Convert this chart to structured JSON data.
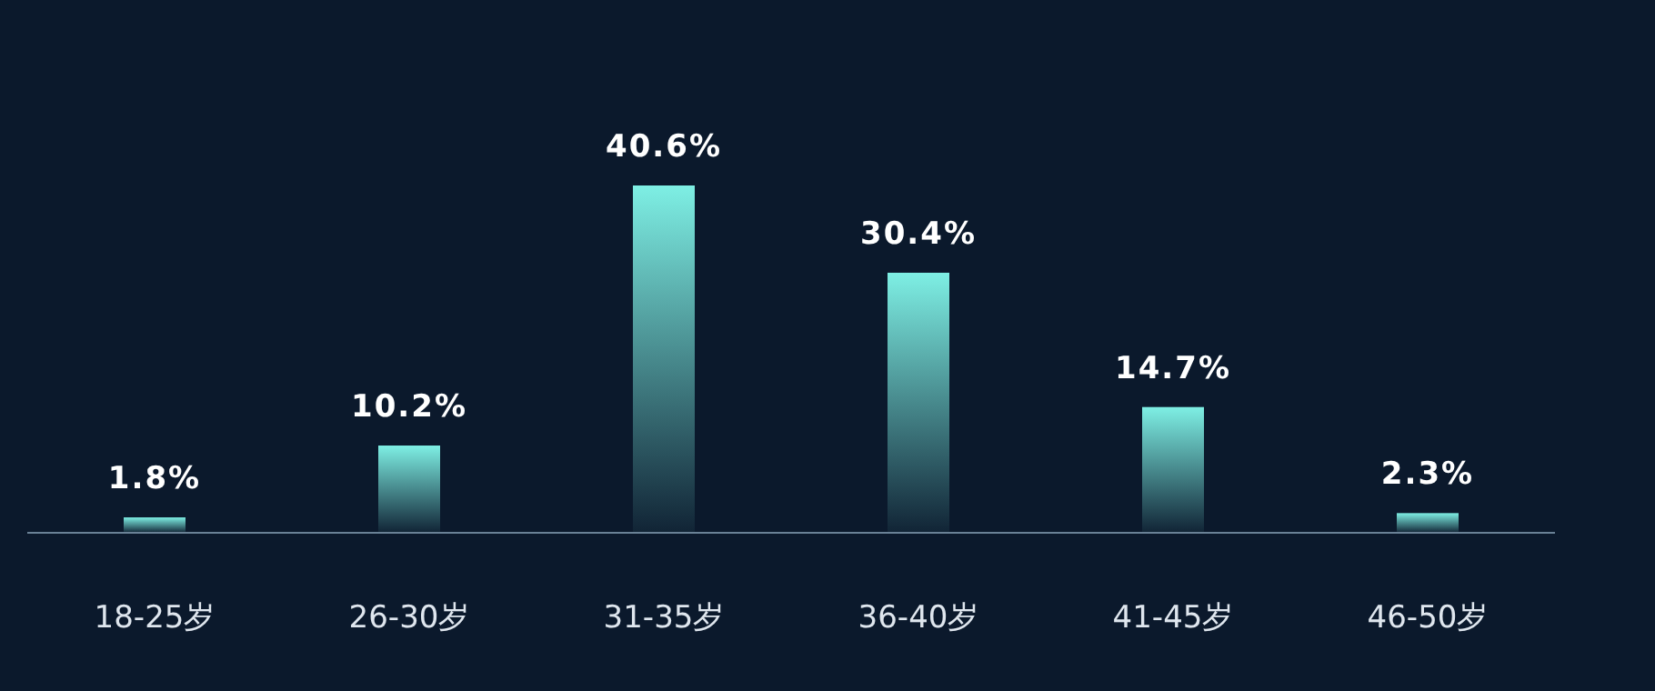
{
  "chart_data": {
    "type": "bar",
    "categories": [
      "18-25岁",
      "26-30岁",
      "31-35岁",
      "36-40岁",
      "41-45岁",
      "46-50岁"
    ],
    "series": [
      {
        "color": "#7eefe4",
        "values": [
          1.8,
          10.2,
          40.6,
          30.4,
          14.7,
          2.3
        ],
        "value_labels": [
          "1.8%",
          "10.2%",
          "40.6%",
          "30.4%",
          "14.7%",
          "2.3%"
        ]
      }
    ]
  }
}
